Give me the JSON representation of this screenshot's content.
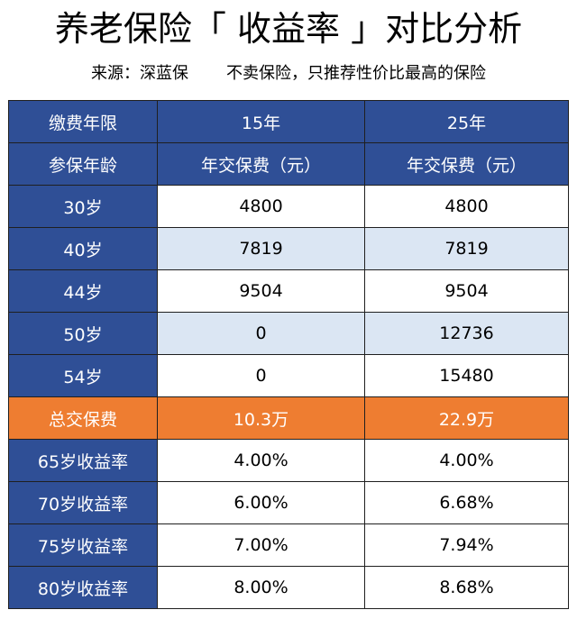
{
  "title": "养老保险「 收益率 」对比分析",
  "source": {
    "left": "来源：深蓝保",
    "right": "不卖保险，只推荐性价比最高的保险"
  },
  "table": {
    "header1": [
      "缴费年限",
      "15年",
      "25年"
    ],
    "header2": [
      "参保年龄",
      "年交保费（元）",
      "年交保费（元）"
    ],
    "rows": [
      [
        "30岁",
        "4800",
        "4800"
      ],
      [
        "40岁",
        "7819",
        "7819"
      ],
      [
        "44岁",
        "9504",
        "9504"
      ],
      [
        "50岁",
        "0",
        "12736"
      ],
      [
        "54岁",
        "0",
        "15480"
      ]
    ],
    "total": [
      "总交保费",
      "10.3万",
      "22.9万"
    ],
    "rates": [
      [
        "65岁收益率",
        "4.00%",
        "4.00%"
      ],
      [
        "70岁收益率",
        "6.00%",
        "6.68%"
      ],
      [
        "75岁收益率",
        "7.00%",
        "7.94%"
      ],
      [
        "80岁收益率",
        "8.00%",
        "8.68%"
      ]
    ]
  }
}
